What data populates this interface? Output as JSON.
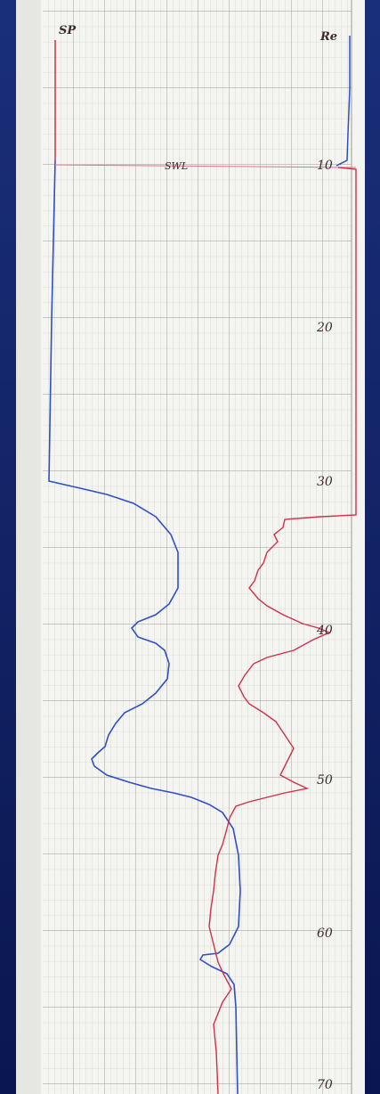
{
  "header": {
    "left": "SP",
    "right": "Re"
  },
  "annotation": "SWL",
  "depth_labels": [
    "10",
    "20",
    "30",
    "40",
    "50",
    "60",
    "70"
  ]
}
